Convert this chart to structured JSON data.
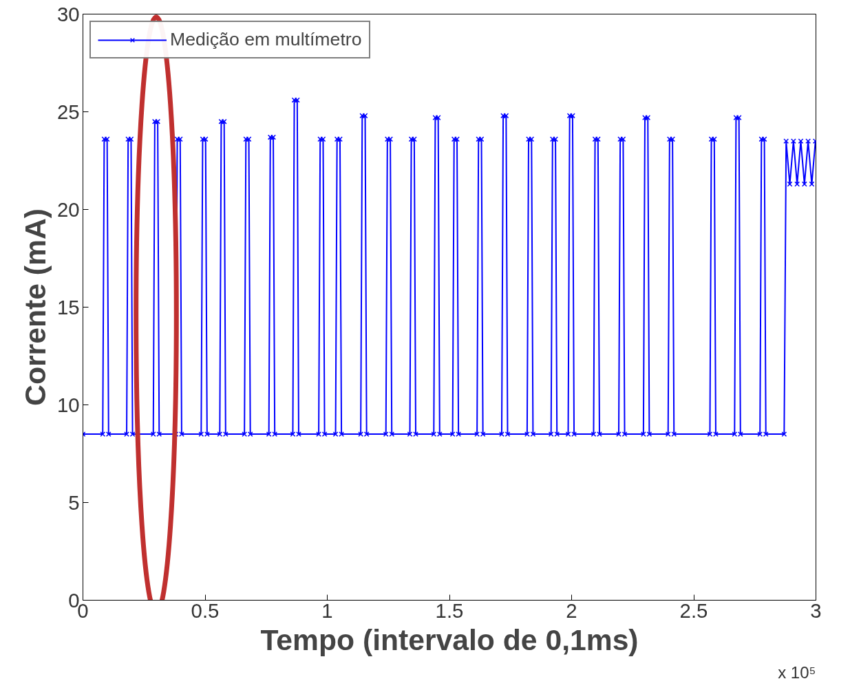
{
  "chart_data": {
    "type": "line",
    "xlabel": "Tempo (intervalo de 0,1ms)",
    "ylabel": "Corrente (mA)",
    "annotations": [
      "x 10⁵"
    ],
    "xlim": [
      0,
      3
    ],
    "ylim": [
      0,
      30
    ],
    "xticks": [
      0,
      0.5,
      1,
      1.5,
      2,
      2.5,
      3
    ],
    "yticks": [
      0,
      5,
      10,
      15,
      20,
      25,
      30
    ],
    "grid": false,
    "legend": "top left",
    "marker": "cross",
    "line_style": "solid",
    "series": [
      {
        "name": "Medição em multímetro",
        "color": "#0000ff",
        "x": [
          0,
          0.081,
          0.087,
          0.099,
          0.105,
          0.179,
          0.185,
          0.197,
          0.203,
          0.288,
          0.294,
          0.306,
          0.312,
          0.38,
          0.386,
          0.398,
          0.404,
          0.484,
          0.49,
          0.502,
          0.508,
          0.56,
          0.566,
          0.578,
          0.584,
          0.661,
          0.667,
          0.679,
          0.685,
          0.761,
          0.767,
          0.779,
          0.785,
          0.859,
          0.865,
          0.877,
          0.883,
          0.965,
          0.971,
          0.983,
          0.989,
          1.034,
          1.04,
          1.052,
          1.058,
          1.137,
          1.143,
          1.155,
          1.161,
          1.24,
          1.246,
          1.258,
          1.264,
          1.338,
          1.344,
          1.356,
          1.362,
          1.436,
          1.442,
          1.454,
          1.46,
          1.513,
          1.519,
          1.531,
          1.537,
          1.613,
          1.619,
          1.631,
          1.637,
          1.714,
          1.72,
          1.732,
          1.738,
          1.818,
          1.824,
          1.836,
          1.842,
          1.916,
          1.922,
          1.934,
          1.94,
          1.986,
          1.992,
          2.004,
          2.01,
          2.09,
          2.096,
          2.108,
          2.114,
          2.193,
          2.199,
          2.211,
          2.217,
          2.294,
          2.3,
          2.312,
          2.318,
          2.395,
          2.401,
          2.413,
          2.419,
          2.566,
          2.572,
          2.584,
          2.59,
          2.667,
          2.673,
          2.685,
          2.691,
          2.771,
          2.777,
          2.789,
          2.795,
          2.87,
          2.878,
          2.893,
          2.908,
          2.923,
          2.938,
          2.953,
          2.968,
          2.983,
          2.998
        ],
        "values": [
          8.5,
          8.5,
          23.6,
          23.6,
          8.5,
          8.5,
          23.6,
          23.6,
          8.5,
          8.5,
          24.5,
          24.5,
          8.5,
          8.5,
          23.6,
          23.6,
          8.5,
          8.5,
          23.6,
          23.6,
          8.5,
          8.5,
          24.5,
          24.5,
          8.5,
          8.5,
          23.6,
          23.6,
          8.5,
          8.5,
          23.7,
          23.7,
          8.5,
          8.5,
          25.6,
          25.6,
          8.5,
          8.5,
          23.6,
          23.6,
          8.5,
          8.5,
          23.6,
          23.6,
          8.5,
          8.5,
          24.8,
          24.8,
          8.5,
          8.5,
          23.6,
          23.6,
          8.5,
          8.5,
          23.6,
          23.6,
          8.5,
          8.5,
          24.7,
          24.7,
          8.5,
          8.5,
          23.6,
          23.6,
          8.5,
          8.5,
          23.6,
          23.6,
          8.5,
          8.5,
          24.8,
          24.8,
          8.5,
          8.5,
          23.6,
          23.6,
          8.5,
          8.5,
          23.6,
          23.6,
          8.5,
          8.5,
          24.8,
          24.8,
          8.5,
          8.5,
          23.6,
          23.6,
          8.5,
          8.5,
          23.6,
          23.6,
          8.5,
          8.5,
          24.7,
          24.7,
          8.5,
          8.5,
          23.6,
          23.6,
          8.5,
          8.5,
          23.6,
          23.6,
          8.5,
          8.5,
          24.7,
          24.7,
          8.5,
          8.5,
          23.6,
          23.6,
          8.5,
          8.5,
          23.5,
          21.3,
          23.5,
          21.3,
          23.5,
          21.3,
          23.5,
          21.3,
          23.5
        ]
      }
    ]
  }
}
